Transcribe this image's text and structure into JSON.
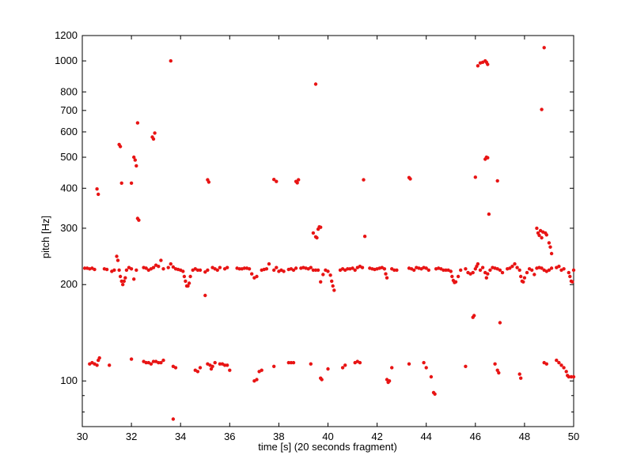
{
  "chart_data": {
    "type": "scatter",
    "xlabel": "time [s] (20 seconds fragment)",
    "ylabel": "pitch [Hz]",
    "xlim": [
      30,
      50
    ],
    "ylim": [
      72,
      1200
    ],
    "yscale": "log",
    "grid": false,
    "legend": "none",
    "marker_color": "#e81414",
    "x_ticks": [
      30,
      32,
      34,
      36,
      38,
      40,
      42,
      44,
      46,
      48,
      50
    ],
    "y_ticks": [
      100,
      200,
      300,
      400,
      500,
      600,
      700,
      800,
      1000,
      1200
    ],
    "series": [
      {
        "points": [
          [
            30.1,
            225
          ],
          [
            30.2,
            225
          ],
          [
            30.3,
            224
          ],
          [
            30.4,
            225
          ],
          [
            30.5,
            223
          ],
          [
            30.9,
            224
          ],
          [
            31.0,
            223
          ],
          [
            31.2,
            220
          ],
          [
            31.3,
            222
          ],
          [
            31.4,
            245
          ],
          [
            31.45,
            238
          ],
          [
            31.5,
            222
          ],
          [
            31.55,
            212
          ],
          [
            31.6,
            205
          ],
          [
            31.65,
            200
          ],
          [
            31.7,
            205
          ],
          [
            31.75,
            210
          ],
          [
            31.8,
            222
          ],
          [
            31.9,
            226
          ],
          [
            32.0,
            224
          ],
          [
            32.1,
            208
          ],
          [
            32.2,
            222
          ],
          [
            32.5,
            226
          ],
          [
            32.6,
            225
          ],
          [
            32.7,
            222
          ],
          [
            32.8,
            224
          ],
          [
            32.9,
            226
          ],
          [
            33.0,
            230
          ],
          [
            33.1,
            228
          ],
          [
            33.2,
            238
          ],
          [
            33.3,
            224
          ],
          [
            33.5,
            226
          ],
          [
            33.6,
            232
          ],
          [
            33.7,
            227
          ],
          [
            33.8,
            224
          ],
          [
            33.9,
            223
          ],
          [
            34.0,
            222
          ],
          [
            34.1,
            220
          ],
          [
            34.15,
            212
          ],
          [
            34.2,
            205
          ],
          [
            34.25,
            198
          ],
          [
            34.3,
            198
          ],
          [
            34.35,
            202
          ],
          [
            34.4,
            212
          ],
          [
            34.5,
            222
          ],
          [
            34.6,
            224
          ],
          [
            34.7,
            222
          ],
          [
            34.8,
            222
          ],
          [
            35.0,
            219
          ],
          [
            35.1,
            222
          ],
          [
            35.3,
            226
          ],
          [
            35.4,
            224
          ],
          [
            35.5,
            222
          ],
          [
            35.6,
            226
          ],
          [
            35.8,
            224
          ],
          [
            35.9,
            226
          ],
          [
            36.3,
            225
          ],
          [
            36.4,
            224
          ],
          [
            36.5,
            224
          ],
          [
            36.6,
            225
          ],
          [
            36.7,
            225
          ],
          [
            36.8,
            224
          ],
          [
            36.9,
            216
          ],
          [
            37.0,
            210
          ],
          [
            37.1,
            212
          ],
          [
            37.3,
            222
          ],
          [
            37.4,
            223
          ],
          [
            37.5,
            224
          ],
          [
            37.6,
            232
          ],
          [
            37.8,
            222
          ],
          [
            37.9,
            226
          ],
          [
            38.0,
            220
          ],
          [
            38.1,
            222
          ],
          [
            38.2,
            220
          ],
          [
            38.4,
            223
          ],
          [
            38.5,
            224
          ],
          [
            38.6,
            222
          ],
          [
            38.7,
            225
          ],
          [
            38.9,
            225
          ],
          [
            39.0,
            226
          ],
          [
            39.1,
            225
          ],
          [
            39.2,
            224
          ],
          [
            39.3,
            226
          ],
          [
            39.4,
            222
          ],
          [
            39.5,
            222
          ],
          [
            39.6,
            222
          ],
          [
            39.7,
            204
          ],
          [
            39.8,
            215
          ],
          [
            39.9,
            222
          ],
          [
            40.0,
            220
          ],
          [
            40.1,
            214
          ],
          [
            40.15,
            205
          ],
          [
            40.2,
            198
          ],
          [
            40.25,
            192
          ],
          [
            40.5,
            222
          ],
          [
            40.6,
            224
          ],
          [
            40.7,
            222
          ],
          [
            40.8,
            224
          ],
          [
            40.9,
            224
          ],
          [
            41.0,
            225
          ],
          [
            41.1,
            222
          ],
          [
            41.2,
            226
          ],
          [
            41.3,
            228
          ],
          [
            41.4,
            226
          ],
          [
            41.7,
            225
          ],
          [
            41.8,
            224
          ],
          [
            41.9,
            223
          ],
          [
            42.0,
            224
          ],
          [
            42.1,
            225
          ],
          [
            42.2,
            226
          ],
          [
            42.3,
            224
          ],
          [
            42.35,
            216
          ],
          [
            42.4,
            210
          ],
          [
            42.6,
            224
          ],
          [
            42.7,
            222
          ],
          [
            42.8,
            222
          ],
          [
            43.3,
            225
          ],
          [
            43.4,
            224
          ],
          [
            43.5,
            222
          ],
          [
            43.6,
            226
          ],
          [
            43.7,
            225
          ],
          [
            43.8,
            224
          ],
          [
            43.9,
            226
          ],
          [
            44.0,
            225
          ],
          [
            44.1,
            222
          ],
          [
            44.4,
            224
          ],
          [
            44.5,
            225
          ],
          [
            44.6,
            224
          ],
          [
            44.7,
            222
          ],
          [
            44.8,
            222
          ],
          [
            44.9,
            222
          ],
          [
            45.0,
            220
          ],
          [
            45.05,
            212
          ],
          [
            45.1,
            206
          ],
          [
            45.15,
            203
          ],
          [
            45.2,
            204
          ],
          [
            45.3,
            212
          ],
          [
            45.4,
            222
          ],
          [
            45.6,
            224
          ],
          [
            45.7,
            218
          ],
          [
            45.8,
            216
          ],
          [
            45.9,
            218
          ],
          [
            46.0,
            224
          ],
          [
            46.05,
            228
          ],
          [
            46.1,
            232
          ],
          [
            46.2,
            222
          ],
          [
            46.3,
            226
          ],
          [
            46.4,
            218
          ],
          [
            46.45,
            210
          ],
          [
            46.5,
            216
          ],
          [
            46.6,
            222
          ],
          [
            46.7,
            226
          ],
          [
            46.8,
            225
          ],
          [
            46.9,
            224
          ],
          [
            47.0,
            222
          ],
          [
            47.1,
            218
          ],
          [
            47.3,
            224
          ],
          [
            47.4,
            225
          ],
          [
            47.5,
            228
          ],
          [
            47.6,
            232
          ],
          [
            47.7,
            226
          ],
          [
            47.8,
            222
          ],
          [
            47.85,
            212
          ],
          [
            47.9,
            205
          ],
          [
            47.95,
            204
          ],
          [
            48.0,
            210
          ],
          [
            48.1,
            218
          ],
          [
            48.2,
            224
          ],
          [
            48.3,
            222
          ],
          [
            48.4,
            215
          ],
          [
            48.5,
            225
          ],
          [
            48.6,
            226
          ],
          [
            48.7,
            225
          ],
          [
            48.8,
            222
          ],
          [
            48.9,
            220
          ],
          [
            49.0,
            222
          ],
          [
            49.1,
            225
          ],
          [
            49.3,
            226
          ],
          [
            49.4,
            228
          ],
          [
            49.5,
            222
          ],
          [
            49.6,
            224
          ],
          [
            49.8,
            218
          ],
          [
            49.85,
            212
          ],
          [
            49.9,
            205
          ],
          [
            49.95,
            204
          ],
          [
            50.0,
            222
          ],
          [
            30.3,
            113
          ],
          [
            30.4,
            114
          ],
          [
            30.5,
            113
          ],
          [
            30.6,
            112
          ],
          [
            30.65,
            116
          ],
          [
            30.7,
            118
          ],
          [
            31.1,
            112
          ],
          [
            32.0,
            117
          ],
          [
            32.5,
            115
          ],
          [
            32.6,
            114
          ],
          [
            32.7,
            114
          ],
          [
            32.8,
            113
          ],
          [
            32.9,
            115
          ],
          [
            33.0,
            115
          ],
          [
            33.1,
            114
          ],
          [
            33.2,
            114
          ],
          [
            33.3,
            116
          ],
          [
            33.7,
            111
          ],
          [
            33.8,
            110
          ],
          [
            34.6,
            108
          ],
          [
            34.7,
            107
          ],
          [
            34.8,
            110
          ],
          [
            35.1,
            113
          ],
          [
            35.2,
            112
          ],
          [
            35.25,
            109
          ],
          [
            35.3,
            111
          ],
          [
            35.4,
            114
          ],
          [
            35.6,
            113
          ],
          [
            35.7,
            113
          ],
          [
            35.8,
            112
          ],
          [
            35.9,
            112
          ],
          [
            36.0,
            108
          ],
          [
            37.0,
            100
          ],
          [
            37.1,
            101
          ],
          [
            37.2,
            107
          ],
          [
            37.3,
            108
          ],
          [
            37.8,
            111
          ],
          [
            38.4,
            114
          ],
          [
            38.5,
            114
          ],
          [
            38.6,
            114
          ],
          [
            39.3,
            113
          ],
          [
            39.7,
            102
          ],
          [
            39.75,
            101
          ],
          [
            40.0,
            109
          ],
          [
            40.6,
            110
          ],
          [
            40.7,
            112
          ],
          [
            41.1,
            114
          ],
          [
            41.2,
            115
          ],
          [
            41.3,
            114
          ],
          [
            42.4,
            101
          ],
          [
            42.45,
            99
          ],
          [
            42.5,
            100
          ],
          [
            42.6,
            110
          ],
          [
            43.3,
            113
          ],
          [
            43.9,
            114
          ],
          [
            44.0,
            110
          ],
          [
            44.2,
            103
          ],
          [
            44.3,
            92
          ],
          [
            44.35,
            91
          ],
          [
            45.6,
            111
          ],
          [
            46.8,
            113
          ],
          [
            46.9,
            108
          ],
          [
            46.95,
            106
          ],
          [
            47.8,
            105
          ],
          [
            47.85,
            102
          ],
          [
            48.8,
            114
          ],
          [
            48.9,
            113
          ],
          [
            49.3,
            116
          ],
          [
            49.4,
            114
          ],
          [
            49.5,
            112
          ],
          [
            49.6,
            110
          ],
          [
            49.7,
            107
          ],
          [
            49.75,
            104
          ],
          [
            49.8,
            103
          ],
          [
            49.9,
            103
          ],
          [
            50.0,
            103
          ],
          [
            30.6,
            398
          ],
          [
            30.65,
            383
          ],
          [
            31.5,
            548
          ],
          [
            31.55,
            540
          ],
          [
            31.6,
            415
          ],
          [
            32.0,
            415
          ],
          [
            32.1,
            500
          ],
          [
            32.15,
            490
          ],
          [
            32.2,
            470
          ],
          [
            32.25,
            640
          ],
          [
            32.25,
            322
          ],
          [
            32.3,
            318
          ],
          [
            32.85,
            578
          ],
          [
            32.9,
            570
          ],
          [
            32.95,
            595
          ],
          [
            33.6,
            1000
          ],
          [
            33.7,
            76
          ],
          [
            35.1,
            425
          ],
          [
            35.15,
            418
          ],
          [
            35.0,
            185
          ],
          [
            37.8,
            426
          ],
          [
            37.9,
            420
          ],
          [
            38.7,
            420
          ],
          [
            38.75,
            416
          ],
          [
            38.8,
            425
          ],
          [
            39.4,
            290
          ],
          [
            39.5,
            282
          ],
          [
            39.55,
            280
          ],
          [
            39.6,
            298
          ],
          [
            39.65,
            303
          ],
          [
            39.7,
            302
          ],
          [
            39.5,
            846
          ],
          [
            41.45,
            425
          ],
          [
            41.5,
            283
          ],
          [
            43.3,
            432
          ],
          [
            43.35,
            428
          ],
          [
            45.9,
            158
          ],
          [
            45.95,
            160
          ],
          [
            46.0,
            433
          ],
          [
            46.1,
            965
          ],
          [
            46.2,
            985
          ],
          [
            46.3,
            990
          ],
          [
            46.4,
            1000
          ],
          [
            46.45,
            990
          ],
          [
            46.5,
            975
          ],
          [
            46.4,
            493
          ],
          [
            46.45,
            500
          ],
          [
            46.5,
            498
          ],
          [
            46.55,
            332
          ],
          [
            46.9,
            422
          ],
          [
            47.0,
            152
          ],
          [
            48.5,
            300
          ],
          [
            48.55,
            290
          ],
          [
            48.6,
            285
          ],
          [
            48.65,
            295
          ],
          [
            48.7,
            280
          ],
          [
            48.75,
            292
          ],
          [
            48.85,
            290
          ],
          [
            48.9,
            286
          ],
          [
            49.0,
            270
          ],
          [
            49.05,
            262
          ],
          [
            49.1,
            250
          ],
          [
            48.8,
            1100
          ],
          [
            48.7,
            705
          ]
        ]
      }
    ]
  }
}
